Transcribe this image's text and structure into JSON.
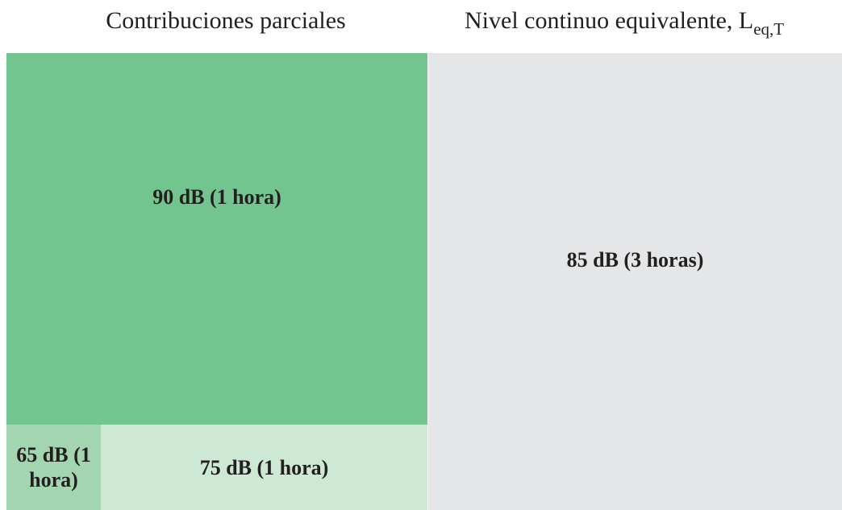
{
  "titles": {
    "left": "Contribuciones parciales",
    "right": {
      "text": "Nivel continuo equivalente, L",
      "subscript": "eq,T"
    }
  },
  "blocks": [
    {
      "label": "90 dB (1 hora)"
    },
    {
      "label": "65 dB (1 hora)"
    },
    {
      "label": "75 dB (1 hora)"
    },
    {
      "label": "85 dB (3 horas)"
    }
  ]
}
